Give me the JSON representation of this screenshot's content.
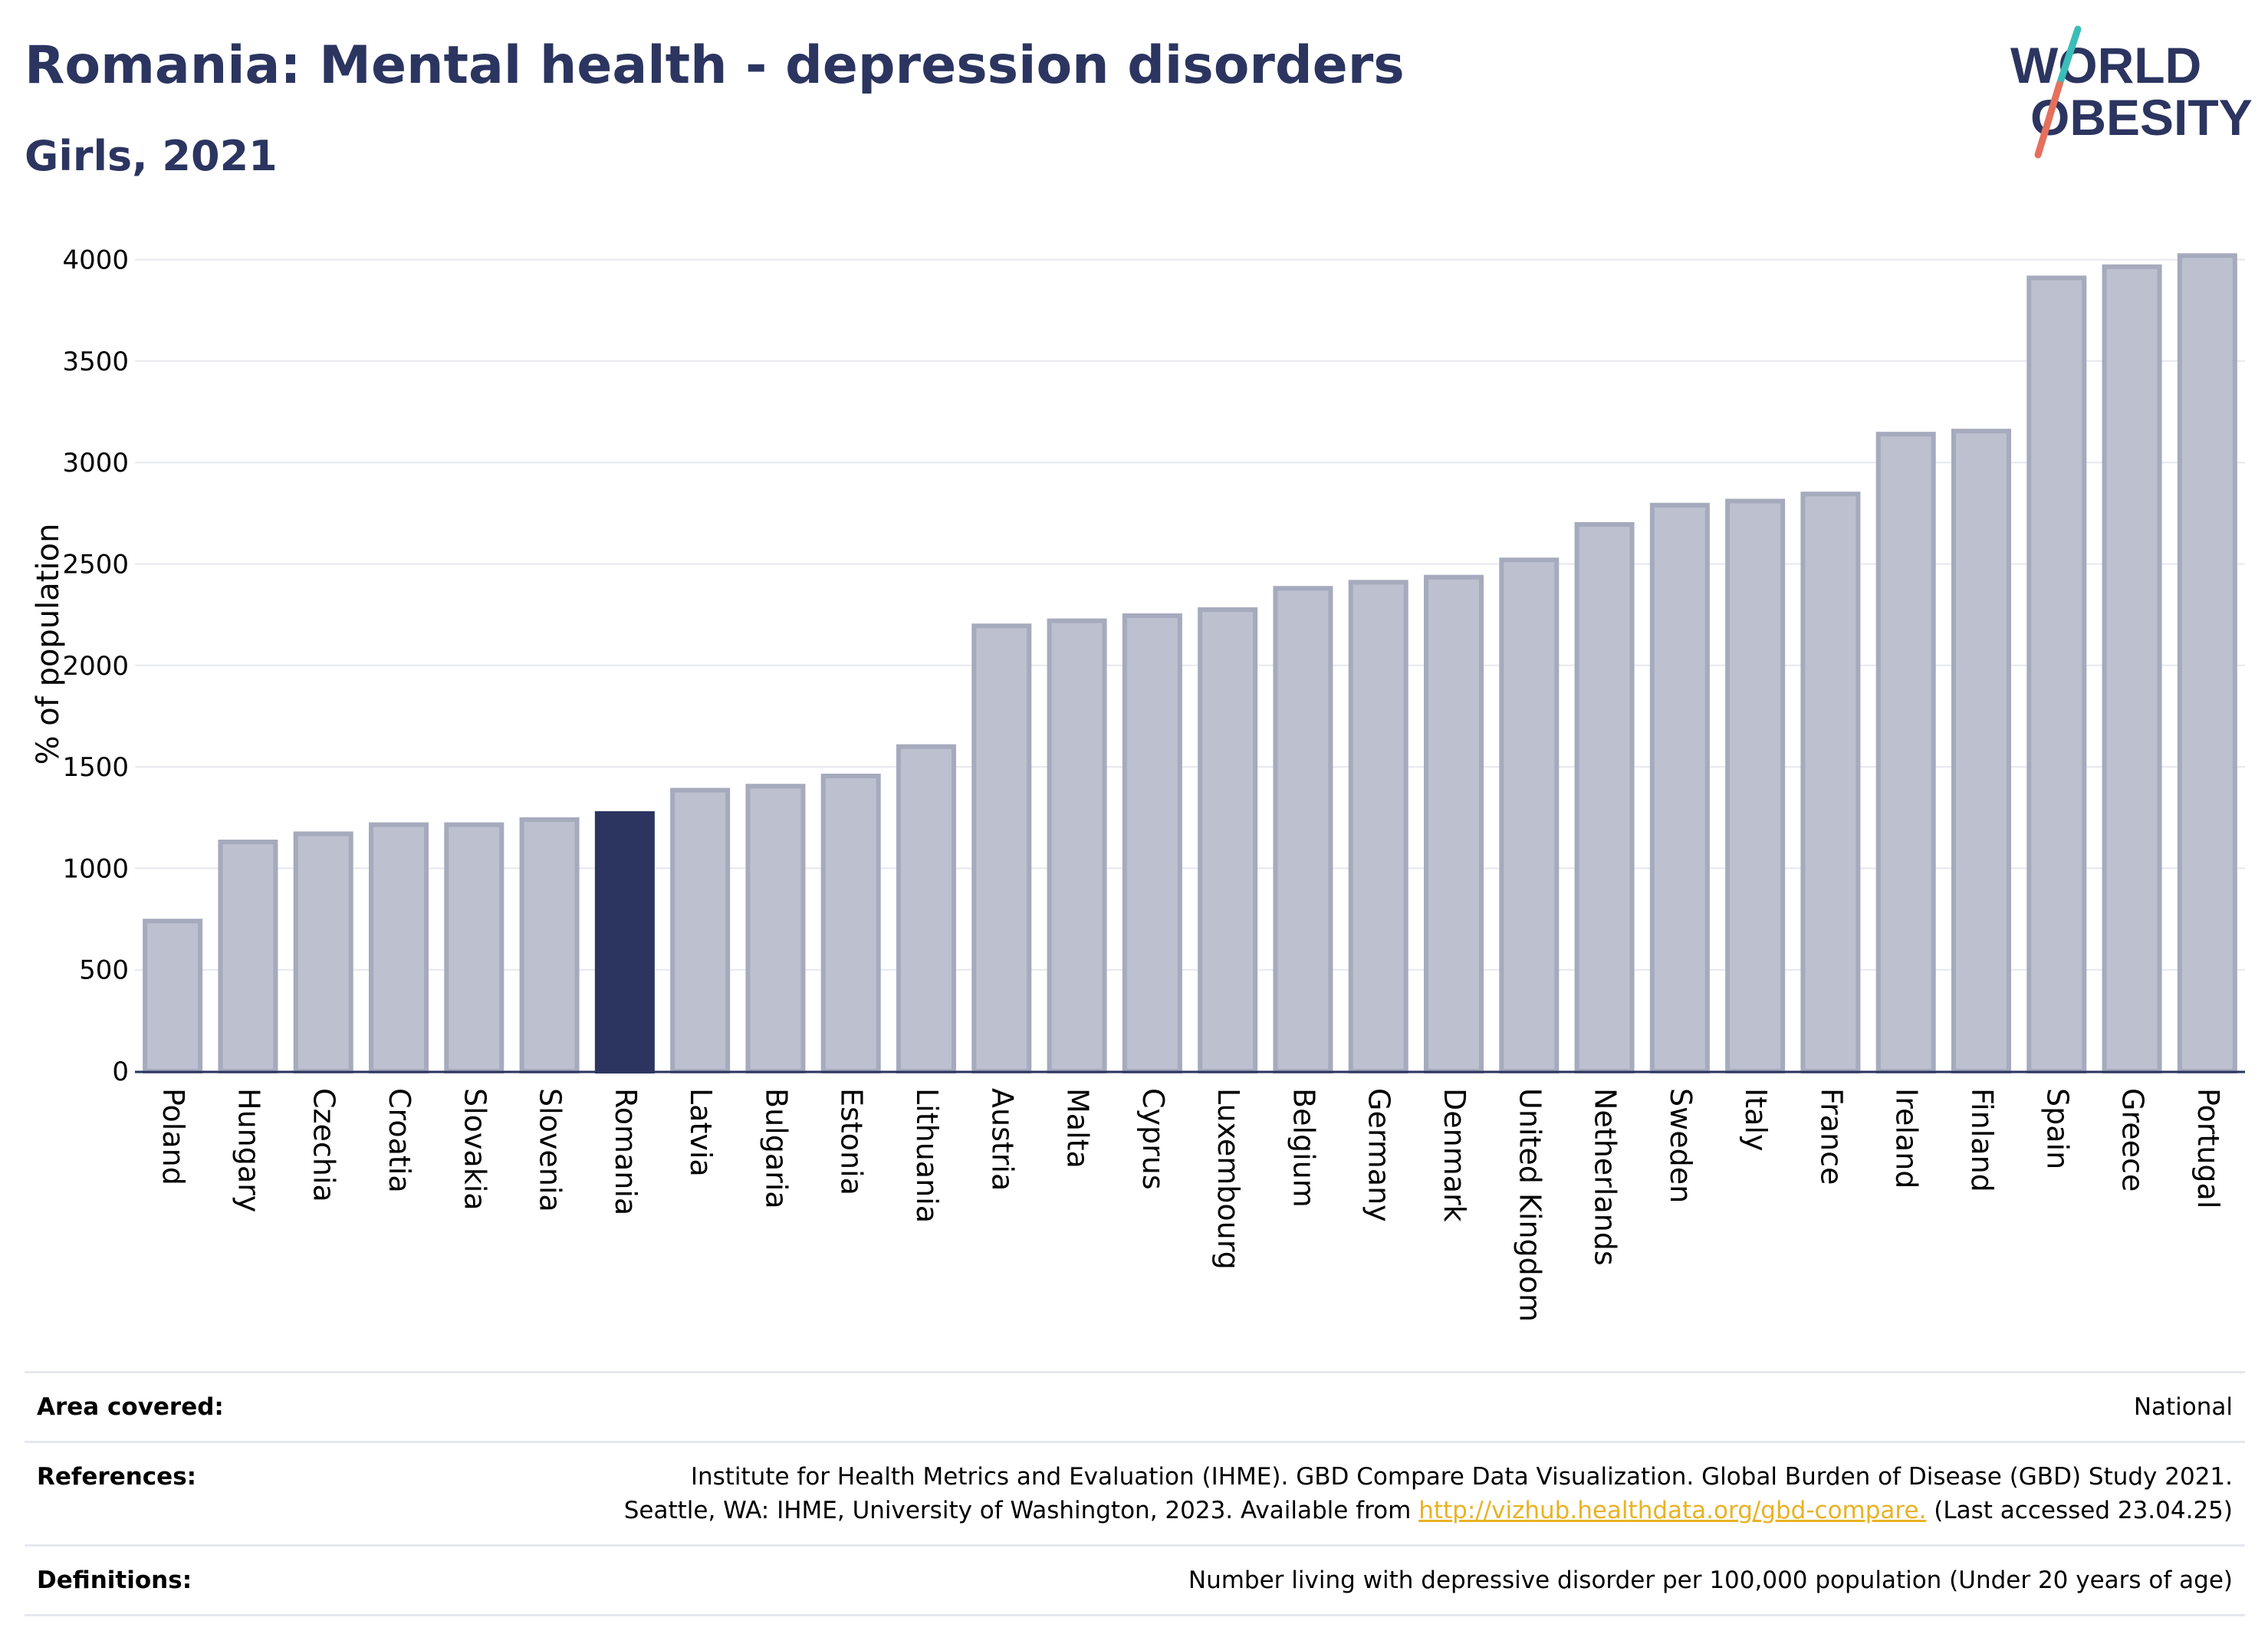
{
  "header": {
    "title": "Romania: Mental health - depression disorders",
    "subtitle": "Girls, 2021"
  },
  "logo": {
    "line1": "WORLD",
    "line2": "OBESITY",
    "colors": {
      "text": "#2b3560",
      "slash_top": "#3bbdb8",
      "slash_bottom": "#e4705d"
    }
  },
  "chart_data": {
    "type": "bar",
    "ylabel": "% of population",
    "ylim": [
      0,
      4100
    ],
    "yticks": [
      0,
      500,
      1000,
      1500,
      2000,
      2500,
      3000,
      3500,
      4000
    ],
    "grid": true,
    "highlight": "Romania",
    "colors": {
      "bar": "#bcc0cf",
      "bar_border": "#a5aabd",
      "highlight": "#2b3560",
      "grid": "#e6e8ee",
      "axis": "#2b3560"
    },
    "categories": [
      "Poland",
      "Hungary",
      "Czechia",
      "Croatia",
      "Slovakia",
      "Slovenia",
      "Romania",
      "Latvia",
      "Bulgaria",
      "Estonia",
      "Lithuania",
      "Austria",
      "Malta",
      "Cyprus",
      "Luxembourg",
      "Belgium",
      "Germany",
      "Denmark",
      "United Kingdom",
      "Netherlands",
      "Sweden",
      "Italy",
      "France",
      "Ireland",
      "Finland",
      "Spain",
      "Greece",
      "Portugal"
    ],
    "values": [
      740,
      1130,
      1170,
      1215,
      1215,
      1240,
      1270,
      1385,
      1405,
      1455,
      1600,
      2195,
      2220,
      2245,
      2275,
      2380,
      2410,
      2435,
      2520,
      2695,
      2790,
      2810,
      2845,
      3140,
      3155,
      3910,
      3965,
      4020
    ]
  },
  "info": {
    "area_label": "Area covered:",
    "area_value": "National",
    "references_label": "References:",
    "references_line1": "Institute for Health Metrics and Evaluation (IHME). GBD Compare Data Visualization. Global Burden of Disease (GBD) Study 2021.",
    "references_line2_before": "Seattle, WA: IHME, University of Washington, 2023. Available from",
    "references_link": "http://vizhub.healthdata.org/gbd-compare.",
    "references_line2_after": "(Last accessed 23.04.25)",
    "definitions_label": "Definitions:",
    "definitions_value": "Number living with depressive disorder per 100,000 population (Under 20 years of age)"
  }
}
